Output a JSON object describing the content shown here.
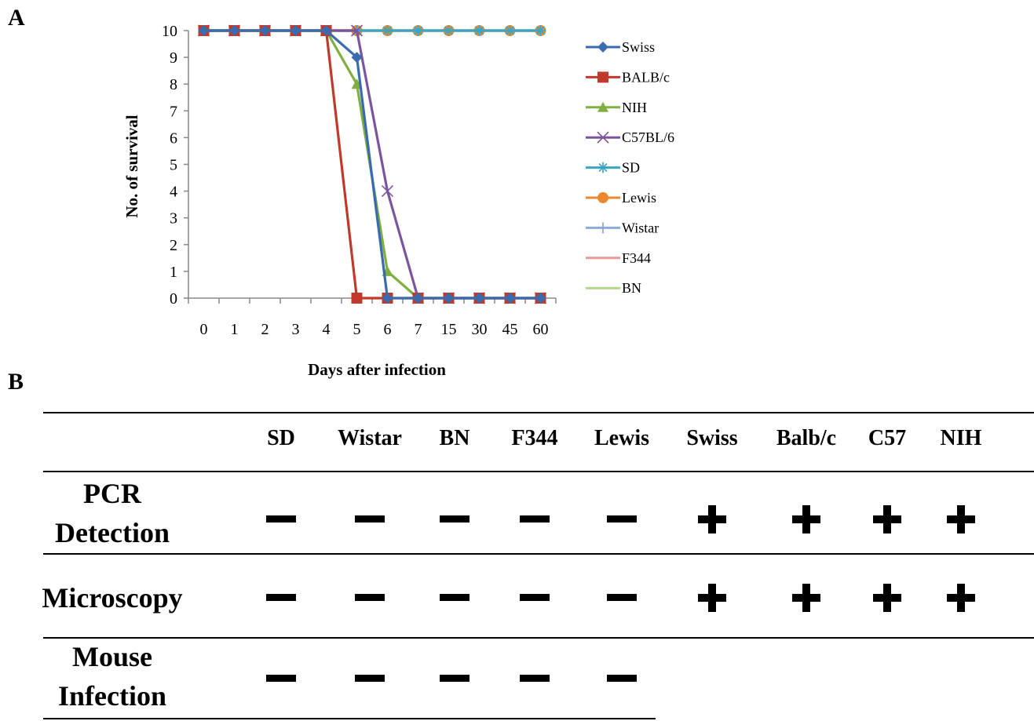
{
  "panel_a_label": "A",
  "panel_b_label": "B",
  "chart_data": {
    "type": "line",
    "xlabel": "Days after infection",
    "ylabel": "No. of survival",
    "categories": [
      "0",
      "1",
      "2",
      "3",
      "4",
      "5",
      "6",
      "7",
      "15",
      "30",
      "45",
      "60"
    ],
    "ylim": [
      0,
      10
    ],
    "yticks": [
      0,
      1,
      2,
      3,
      4,
      5,
      6,
      7,
      8,
      9,
      10
    ],
    "grid": false,
    "legend_position": "right",
    "series": [
      {
        "name": "Swiss",
        "color": "#3A6BAE",
        "marker": "diamond",
        "values": [
          10,
          10,
          10,
          10,
          10,
          9,
          0,
          0,
          0,
          0,
          0,
          0
        ]
      },
      {
        "name": "BALB/c",
        "color": "#C0392B",
        "marker": "square",
        "values": [
          10,
          10,
          10,
          10,
          10,
          0,
          0,
          0,
          0,
          0,
          0,
          0
        ]
      },
      {
        "name": "NIH",
        "color": "#7FAF3F",
        "marker": "triangle",
        "values": [
          10,
          10,
          10,
          10,
          10,
          8,
          1,
          0,
          0,
          0,
          0,
          0
        ]
      },
      {
        "name": "C57BL/6",
        "color": "#7A559E",
        "marker": "x",
        "values": [
          10,
          10,
          10,
          10,
          10,
          10,
          4,
          0,
          0,
          0,
          0,
          0
        ]
      },
      {
        "name": "SD",
        "color": "#3AA6C4",
        "marker": "star",
        "values": [
          10,
          10,
          10,
          10,
          10,
          10,
          10,
          10,
          10,
          10,
          10,
          10
        ]
      },
      {
        "name": "Lewis",
        "color": "#E8892F",
        "marker": "circle",
        "values": [
          10,
          10,
          10,
          10,
          10,
          10,
          10,
          10,
          10,
          10,
          10,
          10
        ]
      },
      {
        "name": "Wistar",
        "color": "#8DA9D6",
        "marker": "plus",
        "values": [
          10,
          10,
          10,
          10,
          10,
          10,
          10,
          10,
          10,
          10,
          10,
          10
        ]
      },
      {
        "name": "F344",
        "color": "#E89A9A",
        "marker": "none",
        "values": [
          10,
          10,
          10,
          10,
          10,
          10,
          10,
          10,
          10,
          10,
          10,
          10
        ]
      },
      {
        "name": "BN",
        "color": "#B3D68C",
        "marker": "none",
        "values": [
          10,
          10,
          10,
          10,
          10,
          10,
          10,
          10,
          10,
          10,
          10,
          10
        ]
      }
    ]
  },
  "table": {
    "columns": [
      "SD",
      "Wistar",
      "BN",
      "F344",
      "Lewis",
      "Swiss",
      "Balb/c",
      "C57",
      "NIH"
    ],
    "rows": [
      {
        "label_line1": "PCR",
        "label_line2": "Detection",
        "values": [
          "−",
          "−",
          "−",
          "−",
          "−",
          "+",
          "+",
          "+",
          "+"
        ]
      },
      {
        "label_line1": "Microscopy",
        "label_line2": "",
        "values": [
          "−",
          "−",
          "−",
          "−",
          "−",
          "+",
          "+",
          "+",
          "+"
        ]
      },
      {
        "label_line1": "Mouse",
        "label_line2": "Infection",
        "values": [
          "−",
          "−",
          "−",
          "−",
          "−",
          "",
          "",
          "",
          ""
        ]
      }
    ]
  }
}
